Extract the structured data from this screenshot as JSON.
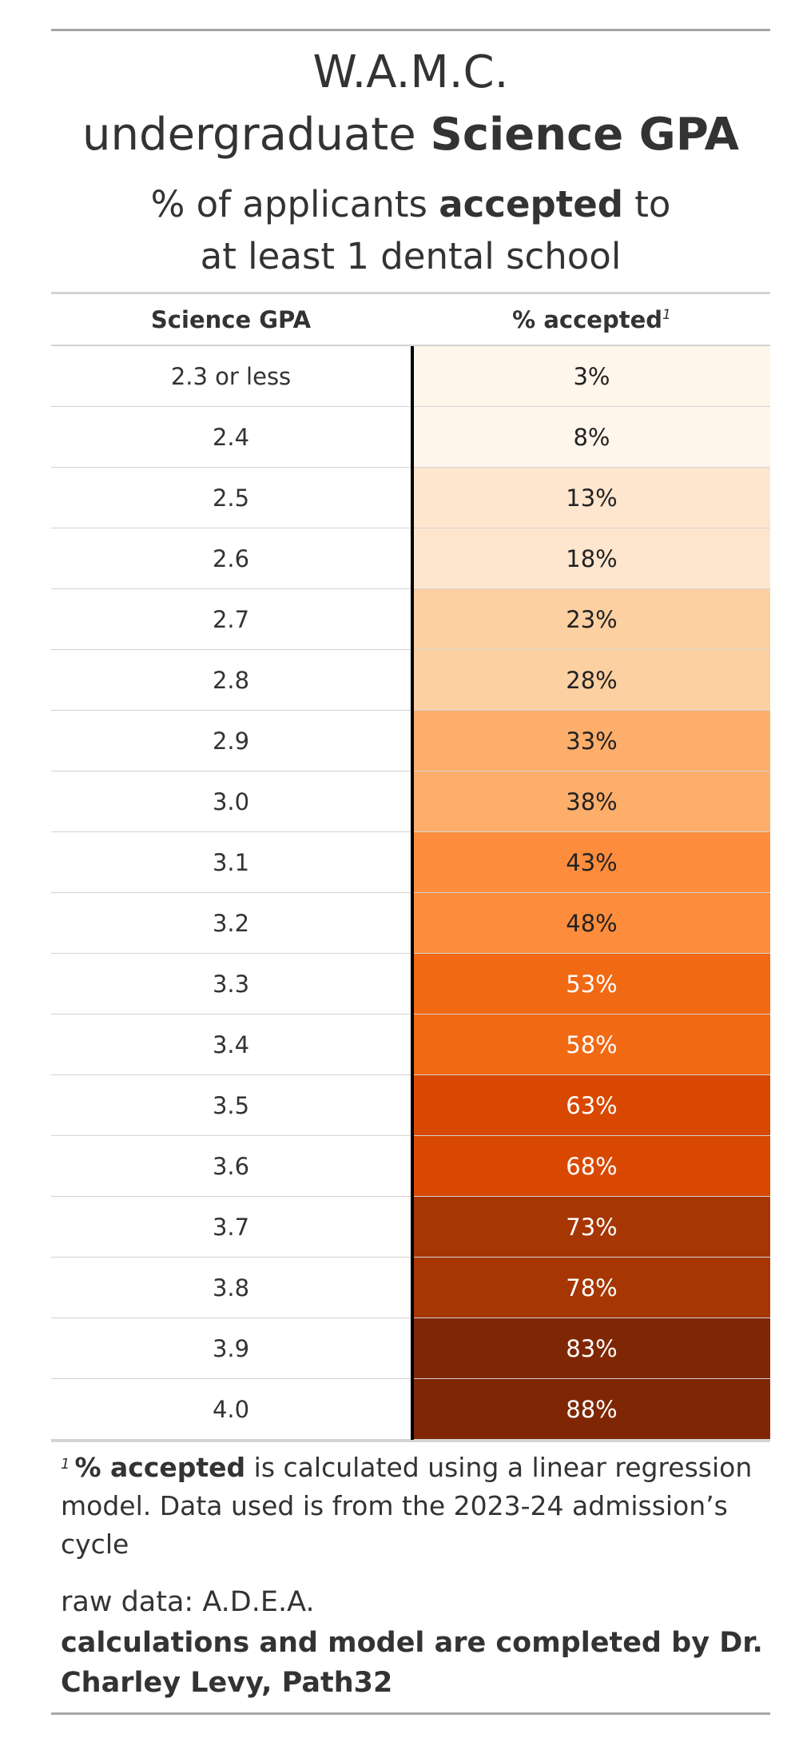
{
  "title": {
    "line1": "W.A.M.C.",
    "line2_prefix": "undergraduate ",
    "line2_bold": "Science GPA"
  },
  "subtitle": {
    "prefix": "% of applicants ",
    "bold": "accepted",
    "suffix": " to",
    "line2": "at least 1 dental school"
  },
  "columns": {
    "gpa": "Science GPA",
    "pct": "% accepted",
    "pct_footnote_mark": "1"
  },
  "chart_data": {
    "type": "table",
    "columns": [
      "Science GPA",
      "% accepted"
    ],
    "rows": [
      {
        "gpa": "2.3 or less",
        "pct": "3%",
        "value": 3
      },
      {
        "gpa": "2.4",
        "pct": "8%",
        "value": 8
      },
      {
        "gpa": "2.5",
        "pct": "13%",
        "value": 13
      },
      {
        "gpa": "2.6",
        "pct": "18%",
        "value": 18
      },
      {
        "gpa": "2.7",
        "pct": "23%",
        "value": 23
      },
      {
        "gpa": "2.8",
        "pct": "28%",
        "value": 28
      },
      {
        "gpa": "2.9",
        "pct": "33%",
        "value": 33
      },
      {
        "gpa": "3.0",
        "pct": "38%",
        "value": 38
      },
      {
        "gpa": "3.1",
        "pct": "43%",
        "value": 43
      },
      {
        "gpa": "3.2",
        "pct": "48%",
        "value": 48
      },
      {
        "gpa": "3.3",
        "pct": "53%",
        "value": 53
      },
      {
        "gpa": "3.4",
        "pct": "58%",
        "value": 58
      },
      {
        "gpa": "3.5",
        "pct": "63%",
        "value": 63
      },
      {
        "gpa": "3.6",
        "pct": "68%",
        "value": 68
      },
      {
        "gpa": "3.7",
        "pct": "73%",
        "value": 73
      },
      {
        "gpa": "3.8",
        "pct": "78%",
        "value": 78
      },
      {
        "gpa": "3.9",
        "pct": "83%",
        "value": 83
      },
      {
        "gpa": "4.0",
        "pct": "88%",
        "value": 88
      }
    ],
    "color_scale": [
      {
        "max": 10,
        "fill": "#fff5eb",
        "text": "#222222"
      },
      {
        "max": 20,
        "fill": "#fee6ce",
        "text": "#222222"
      },
      {
        "max": 30,
        "fill": "#fdd0a2",
        "text": "#222222"
      },
      {
        "max": 40,
        "fill": "#fdae6b",
        "text": "#222222"
      },
      {
        "max": 50,
        "fill": "#fd8d3c",
        "text": "#222222"
      },
      {
        "max": 60,
        "fill": "#f16913",
        "text": "#ffffff"
      },
      {
        "max": 70,
        "fill": "#d94801",
        "text": "#ffffff"
      },
      {
        "max": 80,
        "fill": "#a63603",
        "text": "#ffffff"
      },
      {
        "max": 100,
        "fill": "#7f2704",
        "text": "#ffffff"
      }
    ]
  },
  "footnote": {
    "mark": "1",
    "bold": "% accepted",
    "text": " is calculated using a linear regression model. Data used is from the 2023-24 admission’s cycle"
  },
  "source": "raw data: A.D.E.A.",
  "credit": "calculations and model are completed by Dr. Charley Levy, Path32"
}
